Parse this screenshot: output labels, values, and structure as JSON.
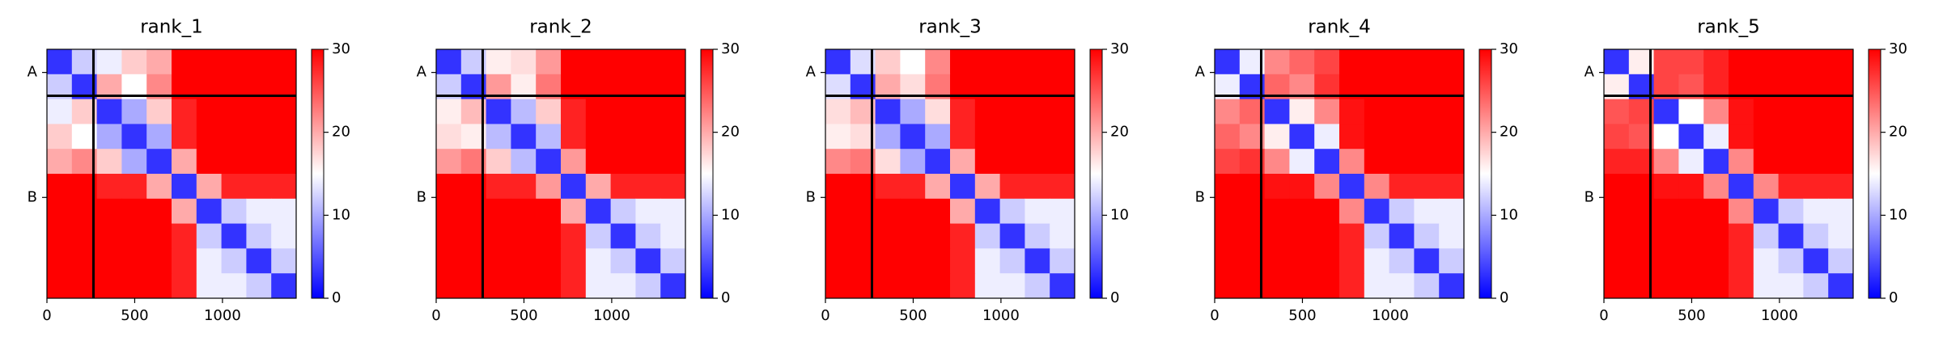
{
  "chart_data": [
    {
      "type": "heatmap",
      "title": "rank_1",
      "colormap": "bwr",
      "x_edges": [
        0,
        142,
        284,
        426,
        568,
        710,
        852,
        994,
        1136,
        1278,
        1420
      ],
      "matrix": [
        [
          3,
          12,
          14,
          18,
          20,
          30,
          30,
          30,
          30,
          30
        ],
        [
          12,
          3,
          20,
          15,
          22,
          30,
          30,
          30,
          30,
          30
        ],
        [
          14,
          18,
          3,
          10,
          18,
          28,
          30,
          30,
          30,
          30
        ],
        [
          18,
          15,
          10,
          3,
          10,
          28,
          30,
          30,
          30,
          30
        ],
        [
          20,
          22,
          18,
          10,
          3,
          20,
          30,
          30,
          30,
          30
        ],
        [
          30,
          30,
          28,
          28,
          20,
          3,
          20,
          28,
          28,
          28
        ],
        [
          30,
          30,
          30,
          30,
          30,
          20,
          3,
          12,
          14,
          14
        ],
        [
          30,
          30,
          30,
          30,
          30,
          28,
          12,
          3,
          12,
          14
        ],
        [
          30,
          30,
          30,
          30,
          30,
          28,
          14,
          12,
          3,
          12
        ],
        [
          30,
          30,
          30,
          30,
          30,
          28,
          14,
          14,
          12,
          3
        ]
      ],
      "xlim": [
        0,
        1420
      ],
      "xticks": [
        0,
        500,
        1000
      ],
      "ylim": [
        1420,
        0
      ],
      "yticks": [
        {
          "value": 132,
          "label": "A"
        },
        {
          "value": 845,
          "label": "B"
        }
      ],
      "chain_breaks": [
        265
      ],
      "clim": [
        0,
        30
      ],
      "cticks": [
        0,
        10,
        20,
        30
      ]
    },
    {
      "type": "heatmap",
      "title": "rank_2",
      "colormap": "bwr",
      "x_edges": [
        0,
        142,
        284,
        426,
        568,
        710,
        852,
        994,
        1136,
        1278,
        1420
      ],
      "matrix": [
        [
          3,
          12,
          16,
          17,
          21,
          30,
          30,
          30,
          30,
          30
        ],
        [
          12,
          3,
          21,
          16,
          23,
          30,
          30,
          30,
          30,
          30
        ],
        [
          16,
          19,
          3,
          11,
          18,
          28,
          30,
          30,
          30,
          30
        ],
        [
          17,
          16,
          11,
          3,
          11,
          28,
          30,
          30,
          30,
          30
        ],
        [
          21,
          23,
          18,
          11,
          3,
          21,
          30,
          30,
          30,
          30
        ],
        [
          30,
          30,
          28,
          28,
          21,
          3,
          20,
          28,
          28,
          28
        ],
        [
          30,
          30,
          30,
          30,
          30,
          20,
          3,
          12,
          14,
          14
        ],
        [
          30,
          30,
          30,
          30,
          30,
          28,
          12,
          3,
          12,
          14
        ],
        [
          30,
          30,
          30,
          30,
          30,
          28,
          14,
          12,
          3,
          12
        ],
        [
          30,
          30,
          30,
          30,
          30,
          28,
          14,
          14,
          12,
          3
        ]
      ],
      "xlim": [
        0,
        1420
      ],
      "xticks": [
        0,
        500,
        1000
      ],
      "ylim": [
        1420,
        0
      ],
      "yticks": [
        {
          "value": 132,
          "label": "A"
        },
        {
          "value": 845,
          "label": "B"
        }
      ],
      "chain_breaks": [
        265
      ],
      "clim": [
        0,
        30
      ],
      "cticks": [
        0,
        10,
        20,
        30
      ]
    },
    {
      "type": "heatmap",
      "title": "rank_3",
      "colormap": "bwr",
      "x_edges": [
        0,
        142,
        284,
        426,
        568,
        710,
        852,
        994,
        1136,
        1278,
        1420
      ],
      "matrix": [
        [
          3,
          13,
          18,
          15,
          22,
          30,
          30,
          30,
          30,
          30
        ],
        [
          13,
          3,
          20,
          17,
          23,
          30,
          30,
          30,
          30,
          30
        ],
        [
          17,
          19,
          3,
          10,
          17,
          28,
          30,
          30,
          30,
          30
        ],
        [
          16,
          17,
          10,
          3,
          10,
          28,
          30,
          30,
          30,
          30
        ],
        [
          22,
          23,
          17,
          10,
          3,
          20,
          30,
          30,
          30,
          30
        ],
        [
          30,
          30,
          28,
          28,
          20,
          3,
          20,
          28,
          28,
          28
        ],
        [
          30,
          30,
          30,
          30,
          30,
          20,
          3,
          12,
          14,
          14
        ],
        [
          30,
          30,
          30,
          30,
          30,
          28,
          12,
          3,
          12,
          14
        ],
        [
          30,
          30,
          30,
          30,
          30,
          28,
          14,
          12,
          3,
          12
        ],
        [
          30,
          30,
          30,
          30,
          30,
          28,
          14,
          14,
          12,
          3
        ]
      ],
      "xlim": [
        0,
        1420
      ],
      "xticks": [
        0,
        500,
        1000
      ],
      "ylim": [
        1420,
        0
      ],
      "yticks": [
        {
          "value": 132,
          "label": "A"
        },
        {
          "value": 845,
          "label": "B"
        }
      ],
      "chain_breaks": [
        265
      ],
      "clim": [
        0,
        30
      ],
      "cticks": [
        0,
        10,
        20,
        30
      ]
    },
    {
      "type": "heatmap",
      "title": "rank_4",
      "colormap": "bwr",
      "x_edges": [
        0,
        142,
        284,
        426,
        568,
        710,
        852,
        994,
        1136,
        1278,
        1420
      ],
      "matrix": [
        [
          3,
          14,
          22,
          24,
          26,
          30,
          30,
          30,
          30,
          30
        ],
        [
          14,
          3,
          24,
          22,
          27,
          30,
          30,
          30,
          30,
          30
        ],
        [
          22,
          24,
          3,
          16,
          22,
          29,
          30,
          30,
          30,
          30
        ],
        [
          24,
          22,
          16,
          3,
          14,
          29,
          30,
          30,
          30,
          30
        ],
        [
          26,
          27,
          22,
          14,
          3,
          22,
          30,
          30,
          30,
          30
        ],
        [
          30,
          30,
          29,
          29,
          22,
          3,
          22,
          28,
          28,
          28
        ],
        [
          30,
          30,
          30,
          30,
          30,
          22,
          3,
          12,
          14,
          14
        ],
        [
          30,
          30,
          30,
          30,
          30,
          28,
          12,
          3,
          12,
          14
        ],
        [
          30,
          30,
          30,
          30,
          30,
          28,
          14,
          12,
          3,
          12
        ],
        [
          30,
          30,
          30,
          30,
          30,
          28,
          14,
          14,
          12,
          3
        ]
      ],
      "xlim": [
        0,
        1420
      ],
      "xticks": [
        0,
        500,
        1000
      ],
      "ylim": [
        1420,
        0
      ],
      "yticks": [
        {
          "value": 132,
          "label": "A"
        },
        {
          "value": 845,
          "label": "B"
        }
      ],
      "chain_breaks": [
        265
      ],
      "clim": [
        0,
        30
      ],
      "cticks": [
        0,
        10,
        20,
        30
      ]
    },
    {
      "type": "heatmap",
      "title": "rank_5",
      "colormap": "bwr",
      "x_edges": [
        0,
        142,
        284,
        426,
        568,
        710,
        852,
        994,
        1136,
        1278,
        1420
      ],
      "matrix": [
        [
          3,
          16,
          26,
          26,
          28,
          30,
          30,
          30,
          30,
          30
        ],
        [
          16,
          3,
          26,
          25,
          28,
          30,
          30,
          30,
          30,
          30
        ],
        [
          25,
          26,
          3,
          15,
          22,
          29,
          30,
          30,
          30,
          30
        ],
        [
          26,
          25,
          15,
          3,
          14,
          29,
          30,
          30,
          30,
          30
        ],
        [
          28,
          28,
          22,
          14,
          3,
          22,
          30,
          30,
          30,
          30
        ],
        [
          30,
          30,
          29,
          29,
          22,
          3,
          22,
          28,
          28,
          28
        ],
        [
          30,
          30,
          30,
          30,
          30,
          22,
          3,
          12,
          14,
          14
        ],
        [
          30,
          30,
          30,
          30,
          30,
          28,
          12,
          3,
          12,
          14
        ],
        [
          30,
          30,
          30,
          30,
          30,
          28,
          14,
          12,
          3,
          12
        ],
        [
          30,
          30,
          30,
          30,
          30,
          28,
          14,
          14,
          12,
          3
        ]
      ],
      "xlim": [
        0,
        1420
      ],
      "xticks": [
        0,
        500,
        1000
      ],
      "ylim": [
        1420,
        0
      ],
      "yticks": [
        {
          "value": 132,
          "label": "A"
        },
        {
          "value": 845,
          "label": "B"
        }
      ],
      "chain_breaks": [
        265
      ],
      "clim": [
        0,
        30
      ],
      "cticks": [
        0,
        10,
        20,
        30
      ]
    }
  ]
}
